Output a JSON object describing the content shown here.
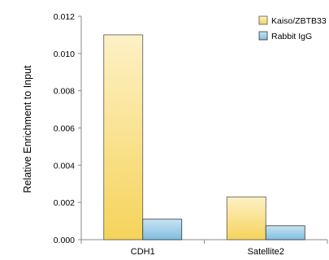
{
  "chart_data": {
    "type": "bar",
    "categories": [
      "CDH1",
      "Satellite2"
    ],
    "series": [
      {
        "name": "Kaiso/ZBTB33",
        "values": [
          0.011,
          0.0023
        ],
        "color_top": "#fdf1c6",
        "color_bottom": "#f5d35a",
        "stroke": "#555555"
      },
      {
        "name": "Rabbit IgG",
        "values": [
          0.0011,
          0.00075
        ],
        "color_top": "#c9e4f4",
        "color_bottom": "#7fbde0",
        "stroke": "#333333"
      }
    ],
    "xlabel": "",
    "ylabel": "Relative Enrichment to Input",
    "ylim": [
      0,
      0.012
    ],
    "yticks": [
      0,
      0.002,
      0.004,
      0.006,
      0.008,
      0.01,
      0.012
    ],
    "ytick_labels": [
      "0.000",
      "0.002",
      "0.004",
      "0.006",
      "0.008",
      "0.010",
      "0.012"
    ],
    "legend_position": "top-right",
    "grid": false
  }
}
